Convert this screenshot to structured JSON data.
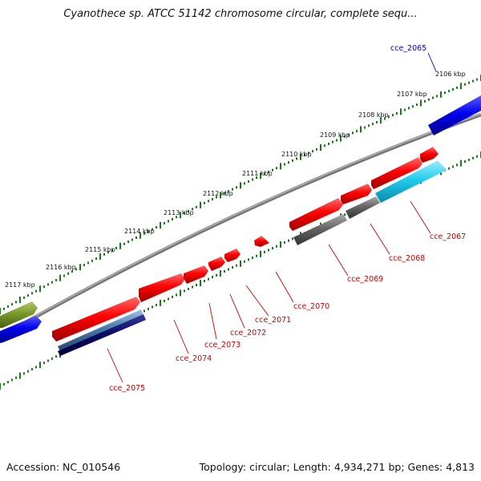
{
  "header": {
    "title": "Cyanothece sp. ATCC 51142 chromosome circular, complete sequ..."
  },
  "footer": {
    "accession": "Accession: NC_010546",
    "summary": "Topology: circular; Length: 4,934,271 bp; Genes: 4,813"
  },
  "ruler": {
    "tick_labels": [
      "2106 kbp",
      "2107 kbp",
      "2108 kbp",
      "2109 kbp",
      "2110 kbp",
      "2111 kbp",
      "2112 kbp",
      "2113 kbp",
      "2114 kbp",
      "2115 kbp",
      "2116 kbp",
      "2117 kbp"
    ]
  },
  "genes": [
    {
      "id": "cce_2065",
      "color": "#0000cc"
    },
    {
      "id": "cce_2067",
      "color": "#cc0000"
    },
    {
      "id": "cce_2068",
      "color": "#cc0000"
    },
    {
      "id": "cce_2069",
      "color": "#cc0000"
    },
    {
      "id": "cce_2070",
      "color": "#cc0000"
    },
    {
      "id": "cce_2071",
      "color": "#cc0000"
    },
    {
      "id": "cce_2072",
      "color": "#cc0000"
    },
    {
      "id": "cce_2073",
      "color": "#cc0000"
    },
    {
      "id": "cce_2074",
      "color": "#cc0000"
    },
    {
      "id": "cce_2075",
      "color": "#cc0000"
    }
  ],
  "colors": {
    "forward_gene": "#ff0000",
    "backbone": "#8a8a8a",
    "tick": "#1a7a1a",
    "blue_gene": "#0000ee",
    "olive_gene": "#7a9a2a",
    "cyan_gene": "#22ccee",
    "gray_gene": "#666666",
    "navy_gene": "#0a0a66",
    "steel_gene": "#4a78aa"
  }
}
